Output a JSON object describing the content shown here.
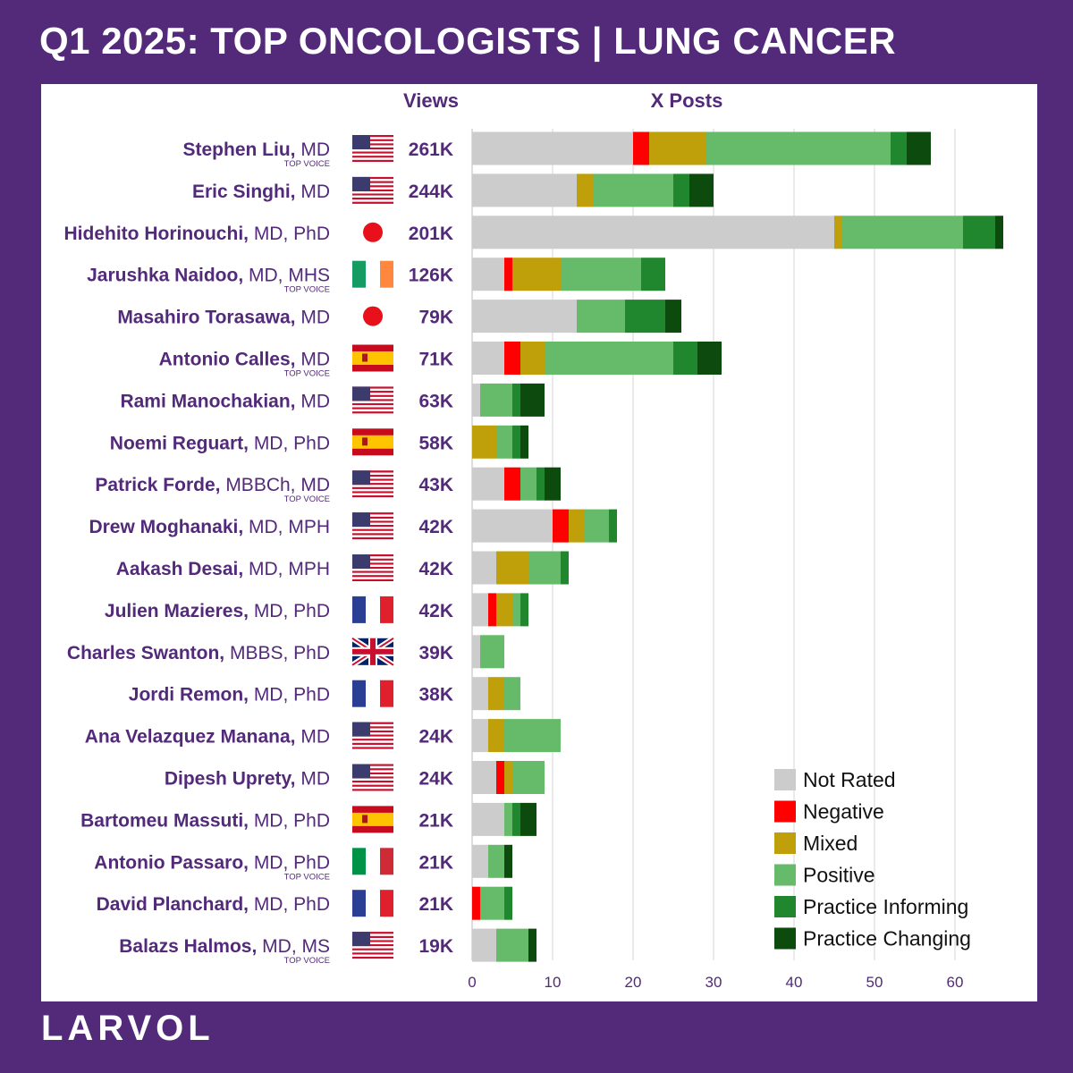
{
  "title": "Q1 2025: TOP ONCOLOGISTS | LUNG CANCER",
  "brand": "LARVOL",
  "chart_data": {
    "type": "bar",
    "orientation": "horizontal",
    "stacked": true,
    "column_headers": {
      "views": "Views",
      "posts": "X Posts"
    },
    "badge_text": "TOP VOICE",
    "xlim": [
      0,
      66
    ],
    "xticks": [
      0,
      10,
      20,
      30,
      40,
      50,
      60
    ],
    "grid": true,
    "legend_position": "bottom-right",
    "series": [
      {
        "name": "Not Rated",
        "color": "#cccccc"
      },
      {
        "name": "Negative",
        "color": "#ff0000"
      },
      {
        "name": "Mixed",
        "color": "#bf9f0a"
      },
      {
        "name": "Positive",
        "color": "#66bb6a"
      },
      {
        "name": "Practice Informing",
        "color": "#21872e"
      },
      {
        "name": "Practice Changing",
        "color": "#0d4a0d"
      }
    ],
    "rows": [
      {
        "name": "Stephen Liu,",
        "credentials": " MD",
        "top_voice": true,
        "flag": "us-flag",
        "views": "261K",
        "values": [
          20,
          2,
          7,
          23,
          2,
          3
        ]
      },
      {
        "name": "Eric Singhi,",
        "credentials": " MD",
        "top_voice": false,
        "flag": "us-flag",
        "views": "244K",
        "values": [
          13,
          0,
          2,
          10,
          2,
          3
        ]
      },
      {
        "name": "Hidehito Horinouchi,",
        "credentials": " MD, PhD",
        "top_voice": false,
        "flag": "jp-flag",
        "views": "201K",
        "values": [
          45,
          0,
          1,
          15,
          4,
          1
        ]
      },
      {
        "name": "Jarushka Naidoo,",
        "credentials": " MD, MHS",
        "top_voice": true,
        "flag": "ie-flag",
        "views": "126K",
        "values": [
          4,
          1,
          6,
          10,
          3,
          0
        ]
      },
      {
        "name": "Masahiro Torasawa,",
        "credentials": " MD",
        "top_voice": false,
        "flag": "jp-flag",
        "views": "79K",
        "values": [
          13,
          0,
          0,
          6,
          5,
          2
        ]
      },
      {
        "name": "Antonio Calles,",
        "credentials": " MD",
        "top_voice": true,
        "flag": "es-flag",
        "views": "71K",
        "values": [
          4,
          2,
          3,
          16,
          3,
          3
        ]
      },
      {
        "name": "Rami Manochakian,",
        "credentials": " MD",
        "top_voice": false,
        "flag": "us-flag",
        "views": "63K",
        "values": [
          1,
          0,
          0,
          4,
          1,
          3
        ]
      },
      {
        "name": "Noemi Reguart,",
        "credentials": " MD, PhD",
        "top_voice": false,
        "flag": "es-flag",
        "views": "58K",
        "values": [
          0,
          0,
          3,
          2,
          1,
          1
        ]
      },
      {
        "name": "Patrick Forde,",
        "credentials": " MBBCh, MD",
        "top_voice": true,
        "flag": "us-flag",
        "views": "43K",
        "values": [
          4,
          2,
          0,
          2,
          1,
          2
        ]
      },
      {
        "name": "Drew Moghanaki,",
        "credentials": " MD, MPH",
        "top_voice": false,
        "flag": "us-flag",
        "views": "42K",
        "values": [
          10,
          2,
          2,
          3,
          1,
          0
        ]
      },
      {
        "name": "Aakash Desai,",
        "credentials": " MD, MPH",
        "top_voice": false,
        "flag": "us-flag",
        "views": "42K",
        "values": [
          3,
          0,
          4,
          4,
          1,
          0
        ]
      },
      {
        "name": "Julien Mazieres,",
        "credentials": " MD, PhD",
        "top_voice": false,
        "flag": "fr-flag",
        "views": "42K",
        "values": [
          2,
          1,
          2,
          1,
          1,
          0
        ]
      },
      {
        "name": "Charles Swanton,",
        "credentials": " MBBS, PhD",
        "top_voice": false,
        "flag": "uk-flag",
        "views": "39K",
        "values": [
          1,
          0,
          0,
          3,
          0,
          0
        ]
      },
      {
        "name": "Jordi Remon,",
        "credentials": " MD, PhD",
        "top_voice": false,
        "flag": "fr-flag",
        "views": "38K",
        "values": [
          2,
          0,
          2,
          2,
          0,
          0
        ]
      },
      {
        "name": "Ana Velazquez Manana,",
        "credentials": " MD",
        "top_voice": false,
        "flag": "us-flag",
        "views": "24K",
        "values": [
          2,
          0,
          2,
          7,
          0,
          0
        ]
      },
      {
        "name": "Dipesh Uprety,",
        "credentials": " MD",
        "top_voice": false,
        "flag": "us-flag",
        "views": "24K",
        "values": [
          3,
          1,
          1,
          4,
          0,
          0
        ]
      },
      {
        "name": "Bartomeu Massuti,",
        "credentials": " MD, PhD",
        "top_voice": false,
        "flag": "es-flag",
        "views": "21K",
        "values": [
          4,
          0,
          0,
          1,
          1,
          2
        ]
      },
      {
        "name": "Antonio Passaro,",
        "credentials": " MD, PhD",
        "top_voice": true,
        "flag": "it-flag",
        "views": "21K",
        "values": [
          2,
          0,
          0,
          2,
          0,
          1
        ]
      },
      {
        "name": "David Planchard,",
        "credentials": " MD, PhD",
        "top_voice": false,
        "flag": "fr-flag",
        "views": "21K",
        "values": [
          0,
          1,
          0,
          3,
          1,
          0
        ]
      },
      {
        "name": "Balazs Halmos,",
        "credentials": " MD, MS",
        "top_voice": true,
        "flag": "us-flag",
        "views": "19K",
        "values": [
          3,
          0,
          0,
          4,
          0,
          1
        ]
      }
    ]
  }
}
